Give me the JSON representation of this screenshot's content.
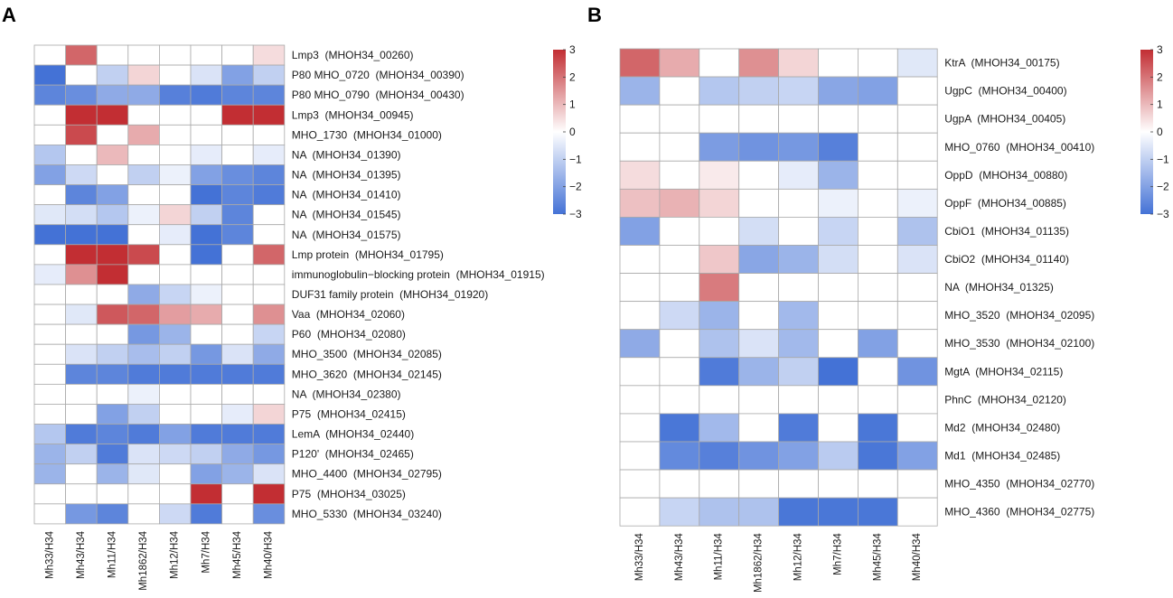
{
  "palette": {
    "low": "#4472d6",
    "mid": "#ffffff",
    "high": "#c22e33",
    "grid": "#a9a9a9"
  },
  "chart_data": [
    {
      "type": "heatmap",
      "panel": "A",
      "columns": [
        "Mh33/H34",
        "Mh43/H34",
        "Mh11/H34",
        "Mh1862/H34",
        "Mh12/H34",
        "Mh7/H34",
        "Mh45/H34",
        "Mh40/H34"
      ],
      "rows": [
        "Lmp3  (MHOH34_00260)",
        "P80 MHO_0720  (MHOH34_00390)",
        "P80 MHO_0790  (MHOH34_00430)",
        "Lmp3  (MHOH34_00945)",
        "MHO_1730  (MHOH34_01000)",
        "NA  (MHOH34_01390)",
        "NA  (MHOH34_01395)",
        "NA  (MHOH34_01410)",
        "NA  (MHOH34_01545)",
        "NA  (MHOH34_01575)",
        "Lmp protein  (MHOH34_01795)",
        "immunoglobulin−blocking protein  (MHOH34_01915)",
        "DUF31 family protein  (MHOH34_01920)",
        "Vaa  (MHOH34_02060)",
        "P60  (MHOH34_02080)",
        "MHO_3500  (MHOH34_02085)",
        "MHO_3620  (MHOH34_02145)",
        "NA  (MHOH34_02380)",
        "P75  (MHOH34_02415)",
        "LemA  (MHOH34_02440)",
        "P120'  (MHOH34_02465)",
        "MHO_4400  (MHOH34_02795)",
        "P75  (MHOH34_03025)",
        "MHO_5330  (MHOH34_03240)"
      ],
      "values": [
        [
          0,
          2.2,
          0,
          0,
          0,
          0,
          0,
          0.5
        ],
        [
          -3,
          0,
          -1,
          0.6,
          0,
          -0.6,
          -2,
          -1
        ],
        [
          -2.6,
          -2.4,
          -1.8,
          -1.8,
          -2.7,
          -2.8,
          -2.6,
          -2.6
        ],
        [
          0,
          3,
          3,
          0,
          0,
          0,
          3,
          3
        ],
        [
          0,
          2.6,
          0,
          1.2,
          0,
          0,
          0,
          0
        ],
        [
          -1.2,
          0,
          1,
          0,
          0,
          -0.4,
          0,
          -0.4
        ],
        [
          -2,
          -0.8,
          0,
          -1,
          -0.3,
          -2,
          -2.4,
          -2.6
        ],
        [
          0,
          -2.6,
          -2,
          0,
          0,
          -3,
          -2.6,
          -2.8
        ],
        [
          -0.5,
          -0.7,
          -1.2,
          -0.3,
          0.6,
          -1,
          -2.6,
          0
        ],
        [
          -3,
          -3,
          -3,
          0,
          -0.4,
          -3,
          -2.6,
          0
        ],
        [
          0,
          3,
          3,
          2.6,
          0,
          -3,
          0,
          2.2
        ],
        [
          -0.4,
          1.6,
          3,
          0,
          0,
          0,
          0,
          0
        ],
        [
          0,
          0,
          0,
          -1.8,
          -0.9,
          -0.3,
          0,
          0
        ],
        [
          0,
          -0.5,
          2.4,
          2.2,
          1.4,
          1.2,
          0,
          1.6
        ],
        [
          0,
          0,
          0,
          -2.2,
          -1.6,
          0,
          0,
          -0.9
        ],
        [
          0,
          -0.6,
          -1,
          -1.4,
          -1,
          -2.2,
          -0.6,
          -1.8
        ],
        [
          0,
          -2.6,
          -2.6,
          -2.8,
          -2.8,
          -2.8,
          -2.8,
          -2.8
        ],
        [
          0,
          0,
          0,
          -0.3,
          0,
          0,
          0,
          0
        ],
        [
          0,
          0,
          -2,
          -1,
          0,
          0,
          -0.4,
          0.6
        ],
        [
          -1.2,
          -2.8,
          -2.6,
          -2.8,
          -2,
          -2.8,
          -2.8,
          -2.8
        ],
        [
          -1.6,
          -1,
          -2.8,
          -0.6,
          -0.8,
          -1,
          -1.8,
          -2.2
        ],
        [
          -1.6,
          0,
          -1.6,
          -0.5,
          0,
          -2,
          -1.6,
          -0.6
        ],
        [
          0,
          0,
          0,
          0,
          0,
          3,
          0,
          3
        ],
        [
          0,
          -2.2,
          -2.6,
          0,
          -0.8,
          -2.8,
          0,
          -2.4
        ]
      ],
      "colorbar": {
        "range": [
          -3,
          3
        ],
        "ticks": [
          3,
          2,
          1,
          0,
          -1,
          -2,
          -3
        ],
        "tick_labels": [
          "3",
          "2",
          "1",
          "0",
          "−1",
          "−2",
          "−3"
        ]
      }
    },
    {
      "type": "heatmap",
      "panel": "B",
      "columns": [
        "Mh33/H34",
        "Mh43/H34",
        "Mh11/H34",
        "Mh1862/H34",
        "Mh12/H34",
        "Mh7/H34",
        "Mh45/H34",
        "Mh40/H34"
      ],
      "rows": [
        "KtrA  (MHOH34_00175)",
        "UgpC  (MHOH34_00400)",
        "UgpA  (MHOH34_00405)",
        "MHO_0760  (MHOH34_00410)",
        "OppD  (MHOH34_00880)",
        "OppF  (MHOH34_00885)",
        "CbiO1  (MHOH34_01135)",
        "CbiO2  (MHOH34_01140)",
        "NA  (MHOH34_01325)",
        "MHO_3520  (MHOH34_02095)",
        "MHO_3530  (MHOH34_02100)",
        "MgtA  (MHOH34_02115)",
        "PhnC  (MHOH34_02120)",
        "Md2  (MHOH34_02480)",
        "Md1  (MHOH34_02485)",
        "MHO_4350  (MHOH34_02770)",
        "MHO_4360  (MHOH34_02775)"
      ],
      "values": [
        [
          2.2,
          1.2,
          0,
          1.6,
          0.6,
          0,
          0,
          -0.5
        ],
        [
          -1.6,
          0,
          -1.2,
          -1,
          -0.9,
          -1.9,
          -2,
          0
        ],
        [
          0,
          0,
          0,
          0,
          0,
          0,
          0,
          0
        ],
        [
          0,
          0,
          -2.1,
          -2.3,
          -2.2,
          -2.7,
          0,
          0
        ],
        [
          0.5,
          0,
          0.3,
          0,
          -0.4,
          -1.6,
          0,
          0
        ],
        [
          0.9,
          1.1,
          0.6,
          0,
          0,
          -0.3,
          0,
          -0.3
        ],
        [
          -2,
          0,
          0,
          -0.7,
          0,
          -0.9,
          0,
          -1.3
        ],
        [
          0,
          0,
          0.8,
          -1.9,
          -1.6,
          -0.7,
          0,
          -0.6
        ],
        [
          0,
          0,
          1.9,
          0,
          0,
          0,
          0,
          0
        ],
        [
          0,
          -0.8,
          -1.6,
          0,
          -1.5,
          0,
          0,
          0
        ],
        [
          -1.8,
          0,
          -1.3,
          -0.6,
          -1.5,
          0,
          -2,
          0
        ],
        [
          0,
          0,
          -2.8,
          -1.6,
          -1,
          -3,
          0,
          -2.3
        ],
        [
          0,
          0,
          0,
          0,
          0,
          0,
          0,
          0
        ],
        [
          0,
          -2.9,
          -1.5,
          0,
          -2.8,
          0,
          -2.9,
          0
        ],
        [
          0,
          -2.5,
          -2.7,
          -2.3,
          -2,
          -1.1,
          -2.9,
          -2
        ],
        [
          0,
          0,
          0,
          0,
          0,
          0,
          0,
          0
        ],
        [
          0,
          -0.9,
          -1.3,
          -1.3,
          -2.9,
          -2.9,
          -2.9,
          0
        ]
      ],
      "colorbar": {
        "range": [
          -3,
          3
        ],
        "ticks": [
          3,
          2,
          1,
          0,
          -1,
          -2,
          -3
        ],
        "tick_labels": [
          "3",
          "2",
          "1",
          "0",
          "−1",
          "−2",
          "−3"
        ]
      }
    }
  ]
}
